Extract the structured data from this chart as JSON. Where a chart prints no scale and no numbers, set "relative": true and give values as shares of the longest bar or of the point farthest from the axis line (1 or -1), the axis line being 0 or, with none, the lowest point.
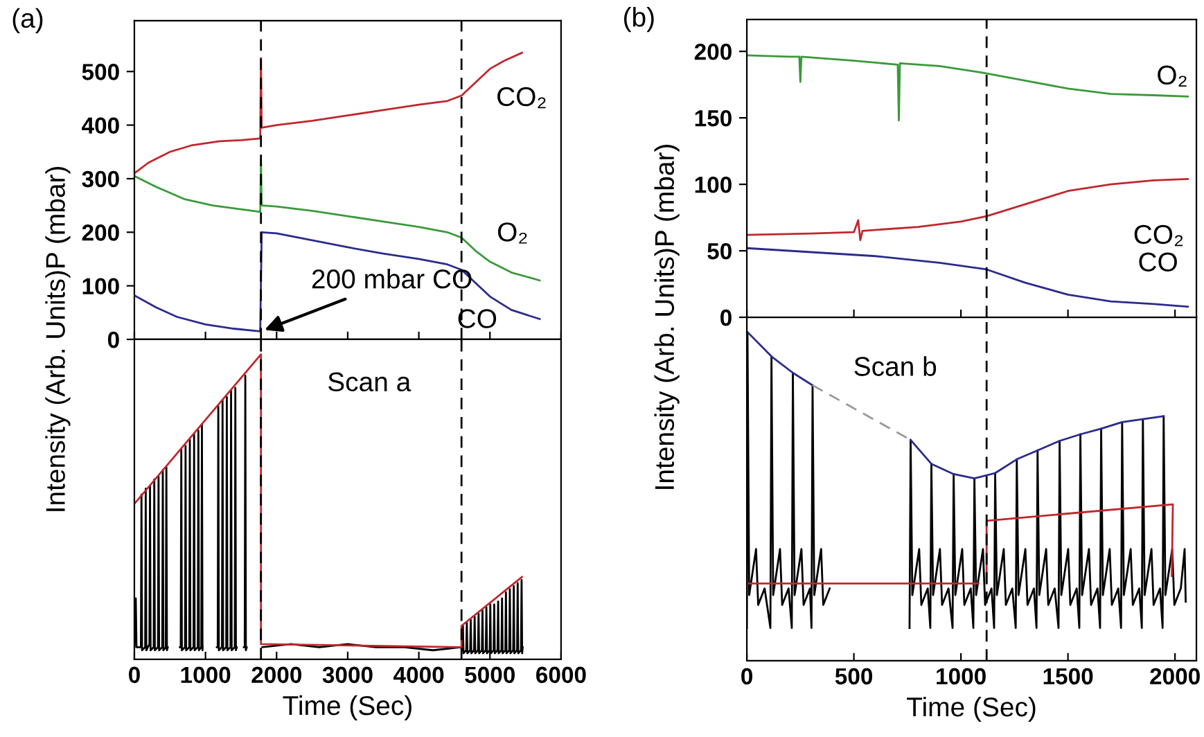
{
  "chart_data": [
    {
      "type": "line",
      "ylabel": "Intensity (Arb. Units)P (mbar)",
      "xlim": [
        0,
        6000
      ],
      "ylim": [
        0,
        595
      ],
      "xticks": [
        0,
        1000,
        2000,
        3000,
        4000,
        5000,
        6000
      ],
      "yticks": [
        0,
        100,
        200,
        300,
        400,
        500
      ],
      "tick_labels": "y",
      "series": [
        {
          "name": "CO₂",
          "color": "#c0272d",
          "x": [
            0,
            200,
            500,
            800,
            1200,
            1500,
            1770,
            1780,
            1790,
            2000,
            2500,
            3000,
            3500,
            4000,
            4400,
            4600,
            4800,
            5000,
            5200,
            5450
          ],
          "values": [
            310,
            330,
            350,
            362,
            370,
            372,
            375,
            525,
            395,
            400,
            408,
            418,
            428,
            438,
            445,
            455,
            480,
            505,
            520,
            535
          ]
        },
        {
          "name": "O₂",
          "color": "#3a9a3a",
          "x": [
            0,
            300,
            700,
            1100,
            1500,
            1770,
            1780,
            1790,
            2000,
            2500,
            3000,
            3500,
            4000,
            4400,
            4600,
            4800,
            5000,
            5300,
            5700
          ],
          "values": [
            305,
            285,
            262,
            250,
            243,
            238,
            335,
            250,
            248,
            240,
            230,
            220,
            210,
            200,
            190,
            165,
            145,
            125,
            110
          ]
        },
        {
          "name": "CO",
          "color": "#2b2b8c",
          "x": [
            0,
            300,
            600,
            1000,
            1400,
            1770,
            1790,
            2000,
            2500,
            3000,
            3500,
            4000,
            4400,
            4600,
            4800,
            5000,
            5300,
            5700
          ],
          "values": [
            82,
            60,
            42,
            28,
            20,
            15,
            200,
            198,
            185,
            172,
            160,
            150,
            140,
            130,
            105,
            80,
            55,
            38
          ]
        }
      ],
      "ref_lines": [
        {
          "axis": "x",
          "value": 1780,
          "color": "#000000",
          "line_style": "dashed"
        },
        {
          "axis": "x",
          "value": 4600,
          "color": "#000000",
          "line_style": "dashed"
        }
      ],
      "annotations": [
        "(a)",
        {
          "text": "200 mbar CO",
          "x": 1780,
          "y": 15
        }
      ]
    },
    {
      "type": "line",
      "relative": true,
      "xlabel": "Time (Sec)",
      "xlim": [
        0,
        6000
      ],
      "xticks": [
        0,
        1000,
        2000,
        3000,
        4000,
        5000,
        6000
      ],
      "tick_labels": "x",
      "series": [
        {
          "color": "#000000",
          "x": [
            0,
            20,
            30,
            92,
            100,
            108,
            152,
            160,
            168,
            212,
            220,
            228,
            272,
            280,
            288,
            332,
            340,
            348,
            392,
            400,
            408,
            442,
            450,
            458,
            470,
            550,
            640,
            652,
            660,
            668,
            712,
            720,
            728,
            772,
            780,
            788,
            832,
            840,
            848,
            892,
            900,
            908,
            942,
            950,
            958,
            960,
            1060,
            1160,
            1172,
            1180,
            1188,
            1232,
            1240,
            1248,
            1292,
            1300,
            1308,
            1352,
            1360,
            1368,
            1412,
            1420,
            1428,
            1440,
            1500,
            1540,
            1552,
            1560,
            1568,
            1580,
            1680,
            1800,
            2200,
            2600,
            3000,
            3400,
            3800,
            4200,
            4590,
            4612,
            4620,
            4628,
            4667,
            4675,
            4683,
            4722,
            4730,
            4738,
            4777,
            4785,
            4793,
            4832,
            4840,
            4848,
            4887,
            4895,
            4903,
            4942,
            4950,
            4958,
            4997,
            5005,
            5013,
            5052,
            5060,
            5068,
            5107,
            5115,
            5123,
            5162,
            5170,
            5178,
            5217,
            5225,
            5233,
            5272,
            5280,
            5288,
            5327,
            5335,
            5343,
            5382,
            5390,
            5398,
            5437,
            5445,
            5453,
            5460
          ],
          "values": [
            0.04,
            0.2,
            0.04,
            0.04,
            0.54,
            0.03,
            0.04,
            0.56,
            0.03,
            0.05,
            0.57,
            0.03,
            0.04,
            0.59,
            0.03,
            0.04,
            0.6,
            0.03,
            0.04,
            0.62,
            0.03,
            0.04,
            0.63,
            0.03,
            0.04,
            null,
            0.04,
            0.04,
            0.69,
            0.03,
            0.04,
            0.7,
            0.03,
            0.04,
            0.72,
            0.03,
            0.04,
            0.74,
            0.03,
            0.04,
            0.75,
            0.03,
            0.04,
            0.77,
            0.03,
            0.04,
            null,
            0.04,
            0.04,
            0.83,
            0.03,
            0.04,
            0.85,
            0.03,
            0.04,
            0.86,
            0.03,
            0.04,
            0.88,
            0.03,
            0.04,
            0.89,
            0.03,
            0.04,
            null,
            0.04,
            0.04,
            0.93,
            0.03,
            0.04,
            null,
            0.04,
            0.05,
            0.04,
            0.05,
            0.04,
            0.04,
            0.03,
            0.04,
            0.03,
            0.11,
            0.02,
            0.03,
            0.12,
            0.02,
            0.03,
            0.13,
            0.02,
            0.03,
            0.14,
            0.02,
            0.03,
            0.15,
            0.02,
            0.03,
            0.16,
            0.02,
            0.03,
            0.17,
            0.02,
            0.03,
            0.18,
            0.02,
            0.03,
            0.18,
            0.02,
            0.03,
            0.19,
            0.02,
            0.03,
            0.2,
            0.02,
            0.03,
            0.22,
            0.02,
            0.03,
            0.23,
            0.02,
            0.03,
            0.24,
            0.02,
            0.03,
            0.25,
            0.02,
            0.03,
            0.26,
            0.02,
            0.04
          ]
        },
        {
          "color": "#c0272d",
          "x": [
            0,
            1780,
            1780,
            4600,
            4600,
            5450
          ],
          "values": [
            0.51,
            1,
            0.05,
            0.04,
            0.11,
            0.27
          ]
        }
      ],
      "ref_lines": [
        {
          "axis": "x",
          "value": 1780,
          "color": "#000000",
          "line_style": "dashed"
        },
        {
          "axis": "x",
          "value": 4600,
          "color": "#000000",
          "line_style": "dashed"
        }
      ],
      "annotations": [
        "Scan a"
      ]
    },
    {
      "type": "line",
      "ylabel": "Intensity (Arb. Units)P (mbar)",
      "xlim": [
        0,
        2100
      ],
      "ylim": [
        0,
        224
      ],
      "xticks": [
        0,
        500,
        1000,
        1500,
        2000
      ],
      "yticks": [
        0,
        50,
        100,
        150,
        200
      ],
      "tick_labels": "y",
      "series": [
        {
          "name": "O₂",
          "color": "#3a9a3a",
          "x": [
            0,
            200,
            245,
            250,
            255,
            500,
            705,
            710,
            715,
            900,
            1100,
            1300,
            1500,
            1700,
            1900,
            2060
          ],
          "values": [
            197,
            196,
            196,
            177,
            196,
            193,
            190,
            148,
            191,
            189,
            184,
            178,
            172,
            168,
            167,
            166
          ]
        },
        {
          "name": "CO₂",
          "color": "#c0272d",
          "x": [
            0,
            300,
            500,
            520,
            530,
            540,
            800,
            1000,
            1120,
            1300,
            1400,
            1500,
            1700,
            1900,
            2060
          ],
          "values": [
            62,
            63,
            64,
            73,
            58,
            65,
            68,
            72,
            76,
            85,
            90,
            95,
            100,
            103,
            104
          ]
        },
        {
          "name": "CO",
          "color": "#2b2b8c",
          "x": [
            0,
            300,
            600,
            900,
            1120,
            1300,
            1500,
            1700,
            1900,
            2060
          ],
          "values": [
            52,
            49,
            46,
            41,
            36,
            26,
            17,
            12,
            10,
            8
          ]
        }
      ],
      "ref_lines": [
        {
          "axis": "x",
          "value": 1120,
          "color": "#000000",
          "line_style": "dashed"
        }
      ],
      "annotations": [
        "(b)"
      ]
    },
    {
      "type": "line",
      "relative": true,
      "xlabel": "Time (Sec)",
      "xlim": [
        0,
        2100
      ],
      "xticks": [
        0,
        500,
        1000,
        1500,
        2000
      ],
      "tick_labels": "x",
      "series": [
        {
          "color": "#000000",
          "x": [
            0,
            3,
            11,
            43,
            53,
            83,
            110,
            115,
            123,
            155,
            165,
            195,
            210,
            215,
            223,
            255,
            265,
            295,
            302,
            307,
            315,
            347,
            357,
            387,
            500,
            760,
            765,
            773,
            805,
            815,
            845,
            857,
            862,
            870,
            902,
            912,
            942,
            961,
            966,
            974,
            1006,
            1016,
            1046,
            1058,
            1063,
            1071,
            1103,
            1113,
            1143,
            1155,
            1160,
            1168,
            1200,
            1210,
            1240,
            1256,
            1261,
            1269,
            1301,
            1311,
            1341,
            1353,
            1358,
            1366,
            1398,
            1408,
            1438,
            1456,
            1461,
            1469,
            1501,
            1511,
            1541,
            1553,
            1558,
            1566,
            1598,
            1608,
            1638,
            1650,
            1655,
            1663,
            1695,
            1705,
            1735,
            1748,
            1753,
            1761,
            1793,
            1803,
            1833,
            1845,
            1850,
            1858,
            1890,
            1900,
            1930,
            1942,
            1947,
            1955,
            1987,
            1997,
            2027,
            2045,
            2050
          ],
          "values": [
            0.1,
            1.0,
            0.2,
            0.34,
            0.17,
            0.22,
            0.1,
            0.926,
            0.2,
            0.34,
            0.17,
            0.22,
            0.1,
            0.876,
            0.2,
            0.34,
            0.17,
            0.22,
            0.1,
            0.838,
            0.2,
            0.34,
            0.17,
            0.22,
            null,
            0.1,
            0.672,
            0.2,
            0.34,
            0.17,
            0.22,
            0.1,
            0.599,
            0.2,
            0.34,
            0.17,
            0.22,
            0.1,
            0.568,
            0.2,
            0.34,
            0.17,
            0.22,
            0.1,
            0.555,
            0.2,
            0.34,
            0.17,
            0.22,
            0.1,
            0.571,
            0.2,
            0.34,
            0.17,
            0.22,
            0.1,
            0.613,
            0.2,
            0.34,
            0.17,
            0.22,
            0.1,
            0.64,
            0.2,
            0.34,
            0.17,
            0.22,
            0.1,
            0.669,
            0.2,
            0.34,
            0.17,
            0.22,
            0.1,
            0.689,
            0.2,
            0.34,
            0.17,
            0.22,
            0.1,
            0.706,
            0.2,
            0.34,
            0.17,
            0.22,
            0.1,
            0.726,
            0.2,
            0.34,
            0.17,
            0.22,
            0.1,
            0.735,
            0.2,
            0.34,
            0.17,
            0.22,
            0.1,
            0.744,
            0.2,
            0.34,
            0.17,
            0.22,
            0.34,
            0.18
          ]
        },
        {
          "color": "#2b2b8c",
          "x": [
            3,
            115,
            215,
            307,
            500,
            765,
            862,
            966,
            1063,
            1160,
            1261,
            1358,
            1461,
            1558,
            1655,
            1753,
            1850,
            1947
          ],
          "values": [
            1.0,
            0.926,
            0.876,
            0.838,
            null,
            0.672,
            0.599,
            0.568,
            0.555,
            0.571,
            0.613,
            0.64,
            0.669,
            0.689,
            0.706,
            0.726,
            0.735,
            0.744
          ]
        },
        {
          "color": "#9a9a9a",
          "line_style": "dashed",
          "x": [
            307,
            765
          ],
          "values": [
            0.838,
            0.672
          ]
        },
        {
          "color": "#c0272d",
          "x": [
            0,
            1082,
            1100,
            1120,
            1120,
            1990,
            1985
          ],
          "values": [
            0.235,
            0.235,
            null,
            0.235,
            0.426,
            0.476,
            0.258
          ]
        }
      ],
      "ref_lines": [
        {
          "axis": "x",
          "value": 1120,
          "color": "#000000",
          "line_style": "dashed"
        }
      ],
      "annotations": [
        "Scan b"
      ]
    }
  ]
}
